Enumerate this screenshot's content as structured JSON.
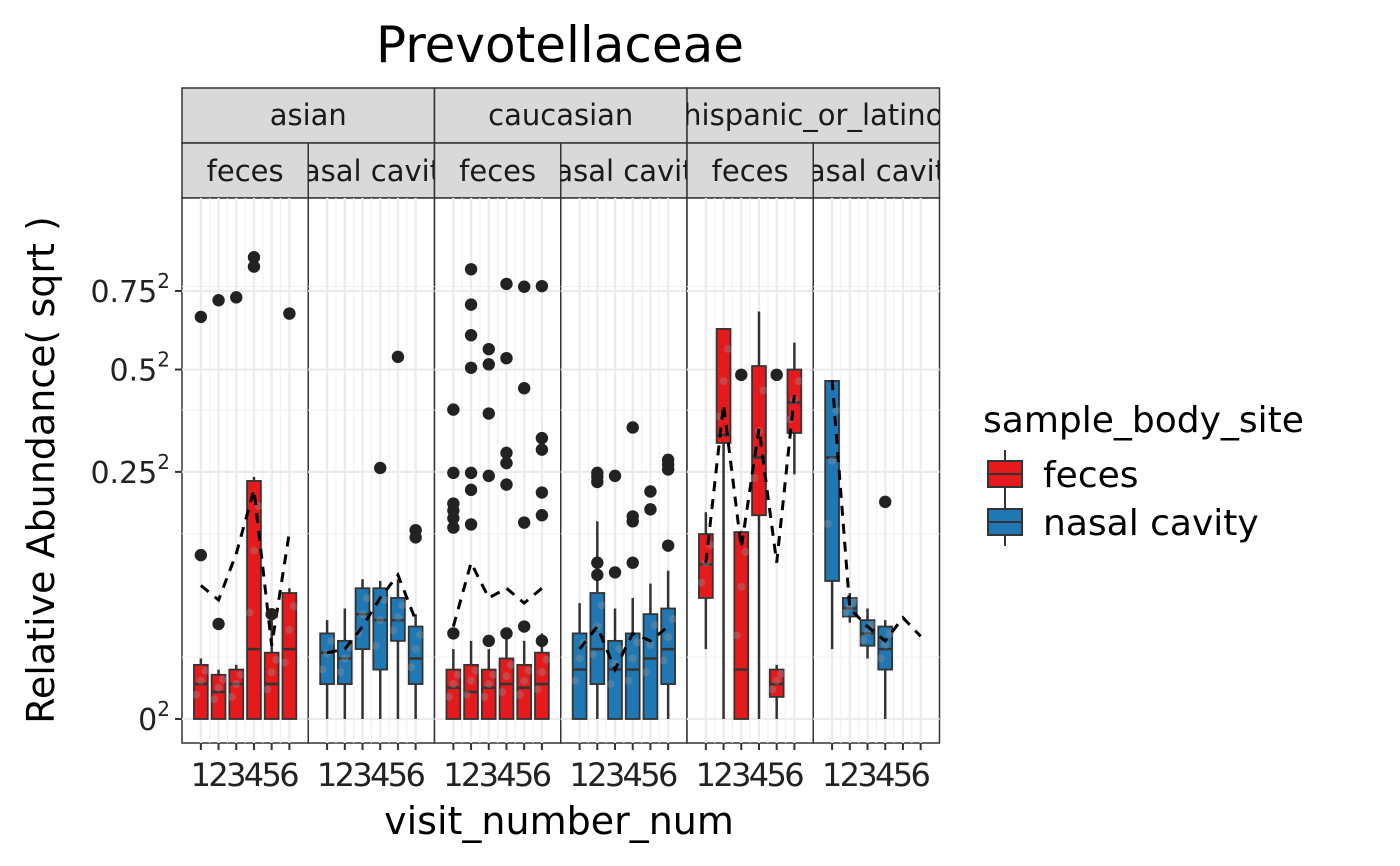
{
  "chart_data": {
    "type": "boxplot",
    "title": "Prevotellaceae",
    "xlabel": "visit_number_num",
    "ylabel": "Relative Abundance( sqrt )",
    "y_scale": "sqrt",
    "y_ticks": [
      {
        "value": 0,
        "label": "0",
        "sup": "2"
      },
      {
        "value": 0.25,
        "label": "0.25",
        "sup": "2"
      },
      {
        "value": 0.5,
        "label": "0.5",
        "sup": "2"
      },
      {
        "value": 0.75,
        "label": "0.75",
        "sup": "2"
      }
    ],
    "ylim": [
      -0.03,
      0.92
    ],
    "x_categories": [
      "1",
      "2",
      "3",
      "4",
      "5",
      "6"
    ],
    "legend": {
      "title": "sample_body_site",
      "position": "right",
      "entries": [
        {
          "label": "feces",
          "color": "#e41a1c"
        },
        {
          "label": "nasal cavity",
          "color": "#1f78b4"
        }
      ]
    },
    "ethnicity_strips": [
      "asian",
      "caucasian",
      "hispanic_or_latino"
    ],
    "panels": [
      {
        "ethnicity": "asian",
        "site": "feces",
        "strip_label": "feces",
        "color": "#e41a1c",
        "boxes": [
          {
            "x": 1,
            "q1": 0.0,
            "median": 0.005,
            "q3": 0.012,
            "lo": 0.0,
            "hi": 0.015
          },
          {
            "x": 2,
            "q1": 0.0,
            "median": 0.003,
            "q3": 0.008,
            "lo": 0.0,
            "hi": 0.01
          },
          {
            "x": 3,
            "q1": 0.0,
            "median": 0.005,
            "q3": 0.01,
            "lo": 0.0,
            "hi": 0.012
          },
          {
            "x": 4,
            "q1": 0.0,
            "median": 0.02,
            "q3": 0.232,
            "lo": 0.0,
            "hi": 0.24
          },
          {
            "x": 5,
            "q1": 0.0,
            "median": 0.005,
            "q3": 0.018,
            "lo": 0.0,
            "hi": 0.045
          },
          {
            "x": 6,
            "q1": 0.0,
            "median": 0.02,
            "q3": 0.065,
            "lo": 0.0,
            "hi": 0.07
          }
        ],
        "mean_line": [
          0.073,
          0.058,
          0.112,
          0.215,
          0.022,
          0.143
        ],
        "outliers": [
          [
            1,
            0.662
          ],
          [
            1,
            0.11
          ],
          [
            2,
            0.718
          ],
          [
            2,
            0.037
          ],
          [
            3,
            0.728
          ],
          [
            4,
            0.873
          ],
          [
            4,
            0.838
          ],
          [
            5,
            0.045
          ],
          [
            6,
            0.673
          ]
        ]
      },
      {
        "ethnicity": "asian",
        "site": "nasal cavity",
        "strip_label": "nasal cavity",
        "color": "#1f78b4",
        "boxes": [
          {
            "x": 1,
            "q1": 0.005,
            "median": 0.018,
            "q3": 0.03,
            "lo": 0.0,
            "hi": 0.04
          },
          {
            "x": 2,
            "q1": 0.005,
            "median": 0.015,
            "q3": 0.025,
            "lo": 0.0,
            "hi": 0.05
          },
          {
            "x": 3,
            "q1": 0.02,
            "median": 0.045,
            "q3": 0.07,
            "lo": 0.0,
            "hi": 0.08
          },
          {
            "x": 4,
            "q1": 0.01,
            "median": 0.04,
            "q3": 0.07,
            "lo": 0.0,
            "hi": 0.078
          },
          {
            "x": 5,
            "q1": 0.025,
            "median": 0.04,
            "q3": 0.06,
            "lo": 0.0,
            "hi": 0.08
          },
          {
            "x": 6,
            "q1": 0.005,
            "median": 0.015,
            "q3": 0.035,
            "lo": 0.0,
            "hi": 0.045
          }
        ],
        "mean_line": [
          0.018,
          0.02,
          0.035,
          0.06,
          0.085,
          0.04
        ],
        "outliers": [
          [
            4,
            0.258
          ],
          [
            5,
            0.537
          ],
          [
            6,
            0.146
          ],
          [
            6,
            0.135
          ]
        ]
      },
      {
        "ethnicity": "caucasian",
        "site": "feces",
        "strip_label": "feces",
        "color": "#e41a1c",
        "boxes": [
          {
            "x": 1,
            "q1": 0.0,
            "median": 0.004,
            "q3": 0.01,
            "lo": 0.0,
            "hi": 0.02
          },
          {
            "x": 2,
            "q1": 0.0,
            "median": 0.003,
            "q3": 0.012,
            "lo": 0.0,
            "hi": 0.025
          },
          {
            "x": 3,
            "q1": 0.0,
            "median": 0.004,
            "q3": 0.01,
            "lo": 0.0,
            "hi": 0.02
          },
          {
            "x": 4,
            "q1": 0.0,
            "median": 0.005,
            "q3": 0.015,
            "lo": 0.0,
            "hi": 0.03
          },
          {
            "x": 5,
            "q1": 0.0,
            "median": 0.004,
            "q3": 0.012,
            "lo": 0.0,
            "hi": 0.025
          },
          {
            "x": 6,
            "q1": 0.0,
            "median": 0.005,
            "q3": 0.018,
            "lo": 0.0,
            "hi": 0.03
          }
        ],
        "mean_line": [
          0.035,
          0.1,
          0.06,
          0.07,
          0.055,
          0.07
        ],
        "outliers": [
          [
            1,
            0.392
          ],
          [
            1,
            0.248
          ],
          [
            1,
            0.19
          ],
          [
            1,
            0.178
          ],
          [
            1,
            0.165
          ],
          [
            1,
            0.15
          ],
          [
            1,
            0.03
          ],
          [
            2,
            0.828
          ],
          [
            2,
            0.703
          ],
          [
            2,
            0.603
          ],
          [
            2,
            0.505
          ],
          [
            2,
            0.248
          ],
          [
            2,
            0.215
          ],
          [
            2,
            0.155
          ],
          [
            3,
            0.56
          ],
          [
            3,
            0.515
          ],
          [
            3,
            0.382
          ],
          [
            3,
            0.242
          ],
          [
            3,
            0.025
          ],
          [
            4,
            0.775
          ],
          [
            4,
            0.533
          ],
          [
            4,
            0.29
          ],
          [
            4,
            0.268
          ],
          [
            4,
            0.225
          ],
          [
            4,
            0.03
          ],
          [
            5,
            0.765
          ],
          [
            5,
            0.448
          ],
          [
            5,
            0.158
          ],
          [
            5,
            0.035
          ],
          [
            6,
            0.767
          ],
          [
            6,
            0.323
          ],
          [
            6,
            0.297
          ],
          [
            6,
            0.21
          ],
          [
            6,
            0.17
          ],
          [
            6,
            0.025
          ]
        ]
      },
      {
        "ethnicity": "caucasian",
        "site": "nasal cavity",
        "strip_label": "nasal cavity",
        "color": "#1f78b4",
        "boxes": [
          {
            "x": 1,
            "q1": 0.0,
            "median": 0.01,
            "q3": 0.03,
            "lo": 0.0,
            "hi": 0.055
          },
          {
            "x": 2,
            "q1": 0.005,
            "median": 0.02,
            "q3": 0.065,
            "lo": 0.0,
            "hi": 0.16
          },
          {
            "x": 3,
            "q1": 0.0,
            "median": 0.01,
            "q3": 0.025,
            "lo": 0.0,
            "hi": 0.05
          },
          {
            "x": 4,
            "q1": 0.0,
            "median": 0.01,
            "q3": 0.03,
            "lo": 0.0,
            "hi": 0.06
          },
          {
            "x": 5,
            "q1": 0.0,
            "median": 0.015,
            "q3": 0.045,
            "lo": 0.0,
            "hi": 0.075
          },
          {
            "x": 6,
            "q1": 0.005,
            "median": 0.02,
            "q3": 0.05,
            "lo": 0.0,
            "hi": 0.09
          }
        ],
        "mean_line": [
          0.02,
          0.035,
          0.01,
          0.03,
          0.025,
          0.035
        ],
        "outliers": [
          [
            2,
            0.248
          ],
          [
            2,
            0.24
          ],
          [
            2,
            0.23
          ],
          [
            2,
            0.1
          ],
          [
            2,
            0.085
          ],
          [
            3,
            0.242
          ],
          [
            3,
            0.088
          ],
          [
            4,
            0.348
          ],
          [
            4,
            0.168
          ],
          [
            4,
            0.16
          ],
          [
            4,
            0.1
          ],
          [
            5,
            0.212
          ],
          [
            5,
            0.18
          ],
          [
            6,
            0.275
          ],
          [
            6,
            0.265
          ],
          [
            6,
            0.255
          ],
          [
            6,
            0.123
          ]
        ]
      },
      {
        "ethnicity": "hispanic_or_latino",
        "site": "feces",
        "strip_label": "feces",
        "color": "#e41a1c",
        "boxes": [
          {
            "x": 1,
            "q1": 0.06,
            "median": 0.098,
            "q3": 0.14,
            "lo": 0.02,
            "hi": 0.175
          },
          {
            "x": 2,
            "q1": 0.312,
            "median": 0.33,
            "q3": 0.623,
            "lo": 0.0,
            "hi": 0.623
          },
          {
            "x": 3,
            "q1": 0.0,
            "median": 0.01,
            "q3": 0.143,
            "lo": 0.0,
            "hi": 0.145
          },
          {
            "x": 4,
            "q1": 0.17,
            "median": 0.28,
            "q3": 0.51,
            "lo": 0.0,
            "hi": 0.68
          },
          {
            "x": 5,
            "q1": 0.002,
            "median": 0.005,
            "q3": 0.01,
            "lo": 0.0,
            "hi": 0.012
          },
          {
            "x": 6,
            "q1": 0.335,
            "median": 0.41,
            "q3": 0.5,
            "lo": 0.245,
            "hi": 0.58
          }
        ],
        "mean_line": [
          0.1,
          0.405,
          0.12,
          0.345,
          0.1,
          0.43
        ],
        "outliers": [
          [
            3,
            0.485
          ],
          [
            5,
            0.485
          ]
        ]
      },
      {
        "ethnicity": "hispanic_or_latino",
        "site": "nasal cavity",
        "strip_label": "nasal cavity",
        "color": "#1f78b4",
        "boxes": [
          {
            "x": 1,
            "q1": 0.078,
            "median": 0.28,
            "q3": 0.468,
            "lo": 0.02,
            "hi": 0.47
          },
          {
            "x": 2,
            "q1": 0.043,
            "median": 0.05,
            "q3": 0.06,
            "lo": 0.038,
            "hi": 0.065
          },
          {
            "x": 3,
            "q1": 0.022,
            "median": 0.03,
            "q3": 0.04,
            "lo": 0.015,
            "hi": 0.05
          },
          {
            "x": 4,
            "q1": 0.01,
            "median": 0.02,
            "q3": 0.035,
            "lo": 0.0,
            "hi": 0.04
          }
        ],
        "mean_line": [
          0.47,
          0.05,
          0.035,
          0.025,
          0.042,
          0.028
        ],
        "outliers": [
          [
            4,
            0.193
          ]
        ]
      }
    ]
  }
}
